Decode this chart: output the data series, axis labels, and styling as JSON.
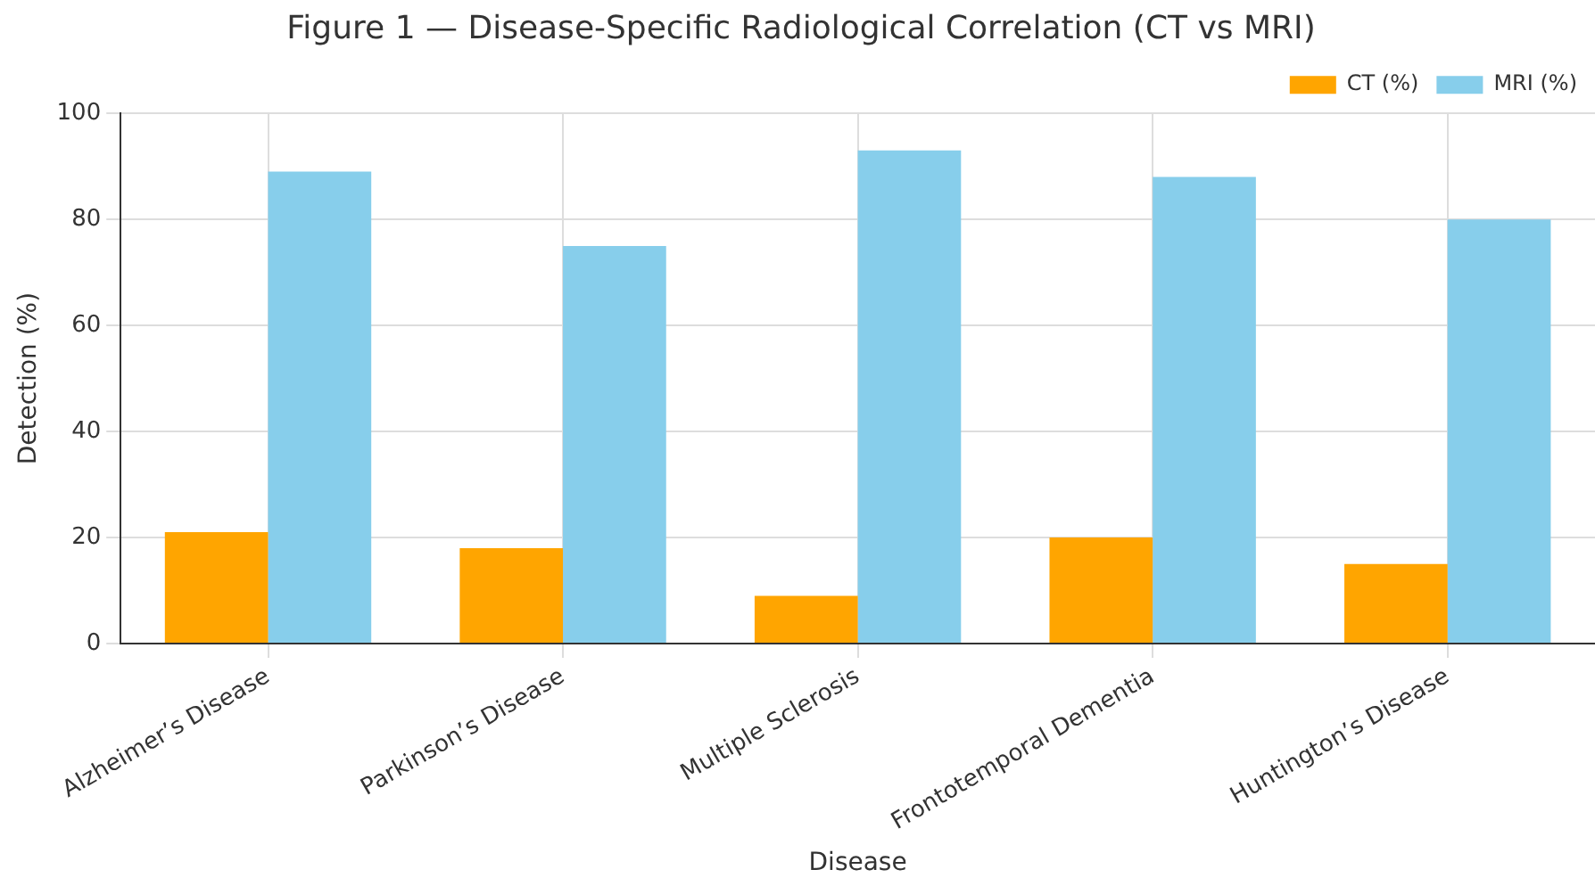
{
  "chart_data": {
    "type": "bar",
    "title": "Figure 1 — Disease-Specific Radiological Correlation (CT vs MRI)",
    "xlabel": "Disease",
    "ylabel": "Detection (%)",
    "categories": [
      "Alzheimer’s Disease",
      "Parkinson’s Disease",
      "Multiple Sclerosis",
      "Frontotemporal Dementia",
      "Huntington’s Disease"
    ],
    "series": [
      {
        "name": "CT (%)",
        "color": "#ffa500",
        "values": [
          21,
          18,
          9,
          20,
          15
        ]
      },
      {
        "name": "MRI (%)",
        "color": "#87ceeb",
        "values": [
          89,
          75,
          93,
          88,
          80
        ]
      }
    ],
    "ylim": [
      0,
      100
    ],
    "yticks": [
      0,
      20,
      40,
      60,
      80,
      100
    ],
    "grid": true,
    "legend": "top right"
  }
}
